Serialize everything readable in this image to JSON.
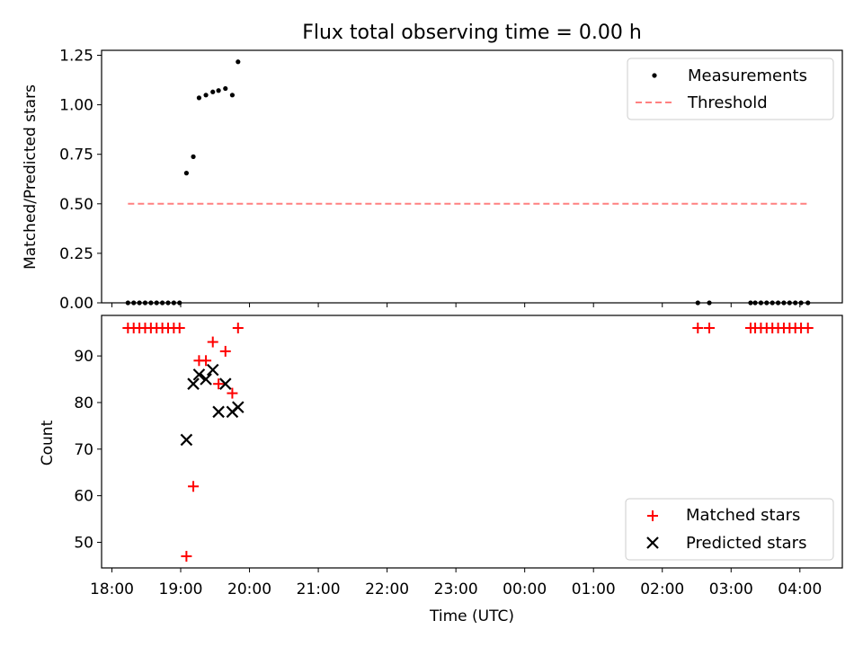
{
  "chart_data": {
    "type": "scatter",
    "title": "Flux total observing time = 0.00 h",
    "xlabel": "Time (UTC)",
    "x_tick_labels": [
      "18:00",
      "19:00",
      "20:00",
      "21:00",
      "22:00",
      "23:00",
      "00:00",
      "01:00",
      "02:00",
      "03:00",
      "04:00"
    ],
    "xlim": [
      "17:51",
      "04:37"
    ],
    "panels": [
      {
        "id": "ratio",
        "ylabel": "Matched/Predicted stars",
        "ylim": [
          0,
          1.275
        ],
        "y_ticks": [
          0,
          0.25,
          0.5,
          0.75,
          1.0,
          1.25
        ],
        "y_tick_labels": [
          "0.00",
          "0.25",
          "0.50",
          "0.75",
          "1.00",
          "1.25"
        ],
        "legend_position": "upper right",
        "series": [
          {
            "name": "Measurements",
            "marker": "dot",
            "color": "#000000",
            "points": [
              [
                "18:14",
                0
              ],
              [
                "18:19",
                0
              ],
              [
                "18:24",
                0
              ],
              [
                "18:29",
                0
              ],
              [
                "18:34",
                0
              ],
              [
                "18:39",
                0
              ],
              [
                "18:44",
                0
              ],
              [
                "18:49",
                0
              ],
              [
                "18:54",
                0
              ],
              [
                "18:59",
                0
              ],
              [
                "19:05",
                0.655
              ],
              [
                "19:11",
                0.738
              ],
              [
                "19:16",
                1.035
              ],
              [
                "19:22",
                1.049
              ],
              [
                "19:28",
                1.065
              ],
              [
                "19:33",
                1.072
              ],
              [
                "19:39",
                1.082
              ],
              [
                "19:45",
                1.049
              ],
              [
                "19:50",
                1.217
              ],
              [
                "02:31",
                0
              ],
              [
                "02:41",
                0
              ],
              [
                "03:17",
                0
              ],
              [
                "03:21",
                0
              ],
              [
                "03:26",
                0
              ],
              [
                "03:31",
                0
              ],
              [
                "03:36",
                0
              ],
              [
                "03:41",
                0
              ],
              [
                "03:46",
                0
              ],
              [
                "03:51",
                0
              ],
              [
                "03:56",
                0
              ],
              [
                "04:01",
                0
              ],
              [
                "04:07",
                0
              ]
            ]
          },
          {
            "name": "Threshold",
            "style": "dashed",
            "color": "#ff8080",
            "points": [
              [
                "18:14",
                0.5
              ],
              [
                "04:07",
                0.5
              ]
            ]
          }
        ]
      },
      {
        "id": "count",
        "ylabel": "Count",
        "ylim": [
          44.5,
          98.7
        ],
        "y_ticks": [
          50,
          60,
          70,
          80,
          90
        ],
        "y_tick_labels": [
          "50",
          "60",
          "70",
          "80",
          "90"
        ],
        "legend_position": "lower right",
        "series": [
          {
            "name": "Matched stars",
            "marker": "plus",
            "color": "#ff0000",
            "points": [
              [
                "18:14",
                96
              ],
              [
                "18:19",
                96
              ],
              [
                "18:24",
                96
              ],
              [
                "18:29",
                96
              ],
              [
                "18:34",
                96
              ],
              [
                "18:39",
                96
              ],
              [
                "18:44",
                96
              ],
              [
                "18:49",
                96
              ],
              [
                "18:54",
                96
              ],
              [
                "18:59",
                96
              ],
              [
                "19:05",
                47
              ],
              [
                "19:11",
                62
              ],
              [
                "19:16",
                89
              ],
              [
                "19:22",
                89
              ],
              [
                "19:28",
                93
              ],
              [
                "19:33",
                84
              ],
              [
                "19:39",
                91
              ],
              [
                "19:45",
                82
              ],
              [
                "19:50",
                96
              ],
              [
                "02:31",
                96
              ],
              [
                "02:41",
                96
              ],
              [
                "03:17",
                96
              ],
              [
                "03:21",
                96
              ],
              [
                "03:26",
                96
              ],
              [
                "03:31",
                96
              ],
              [
                "03:36",
                96
              ],
              [
                "03:41",
                96
              ],
              [
                "03:46",
                96
              ],
              [
                "03:51",
                96
              ],
              [
                "03:56",
                96
              ],
              [
                "04:01",
                96
              ],
              [
                "04:07",
                96
              ]
            ]
          },
          {
            "name": "Predicted stars",
            "marker": "x",
            "color": "#000000",
            "points": [
              [
                "19:05",
                72
              ],
              [
                "19:11",
                84
              ],
              [
                "19:16",
                86
              ],
              [
                "19:22",
                85
              ],
              [
                "19:28",
                87
              ],
              [
                "19:33",
                78
              ],
              [
                "19:39",
                84
              ],
              [
                "19:45",
                78
              ],
              [
                "19:50",
                79
              ]
            ]
          }
        ]
      }
    ]
  }
}
